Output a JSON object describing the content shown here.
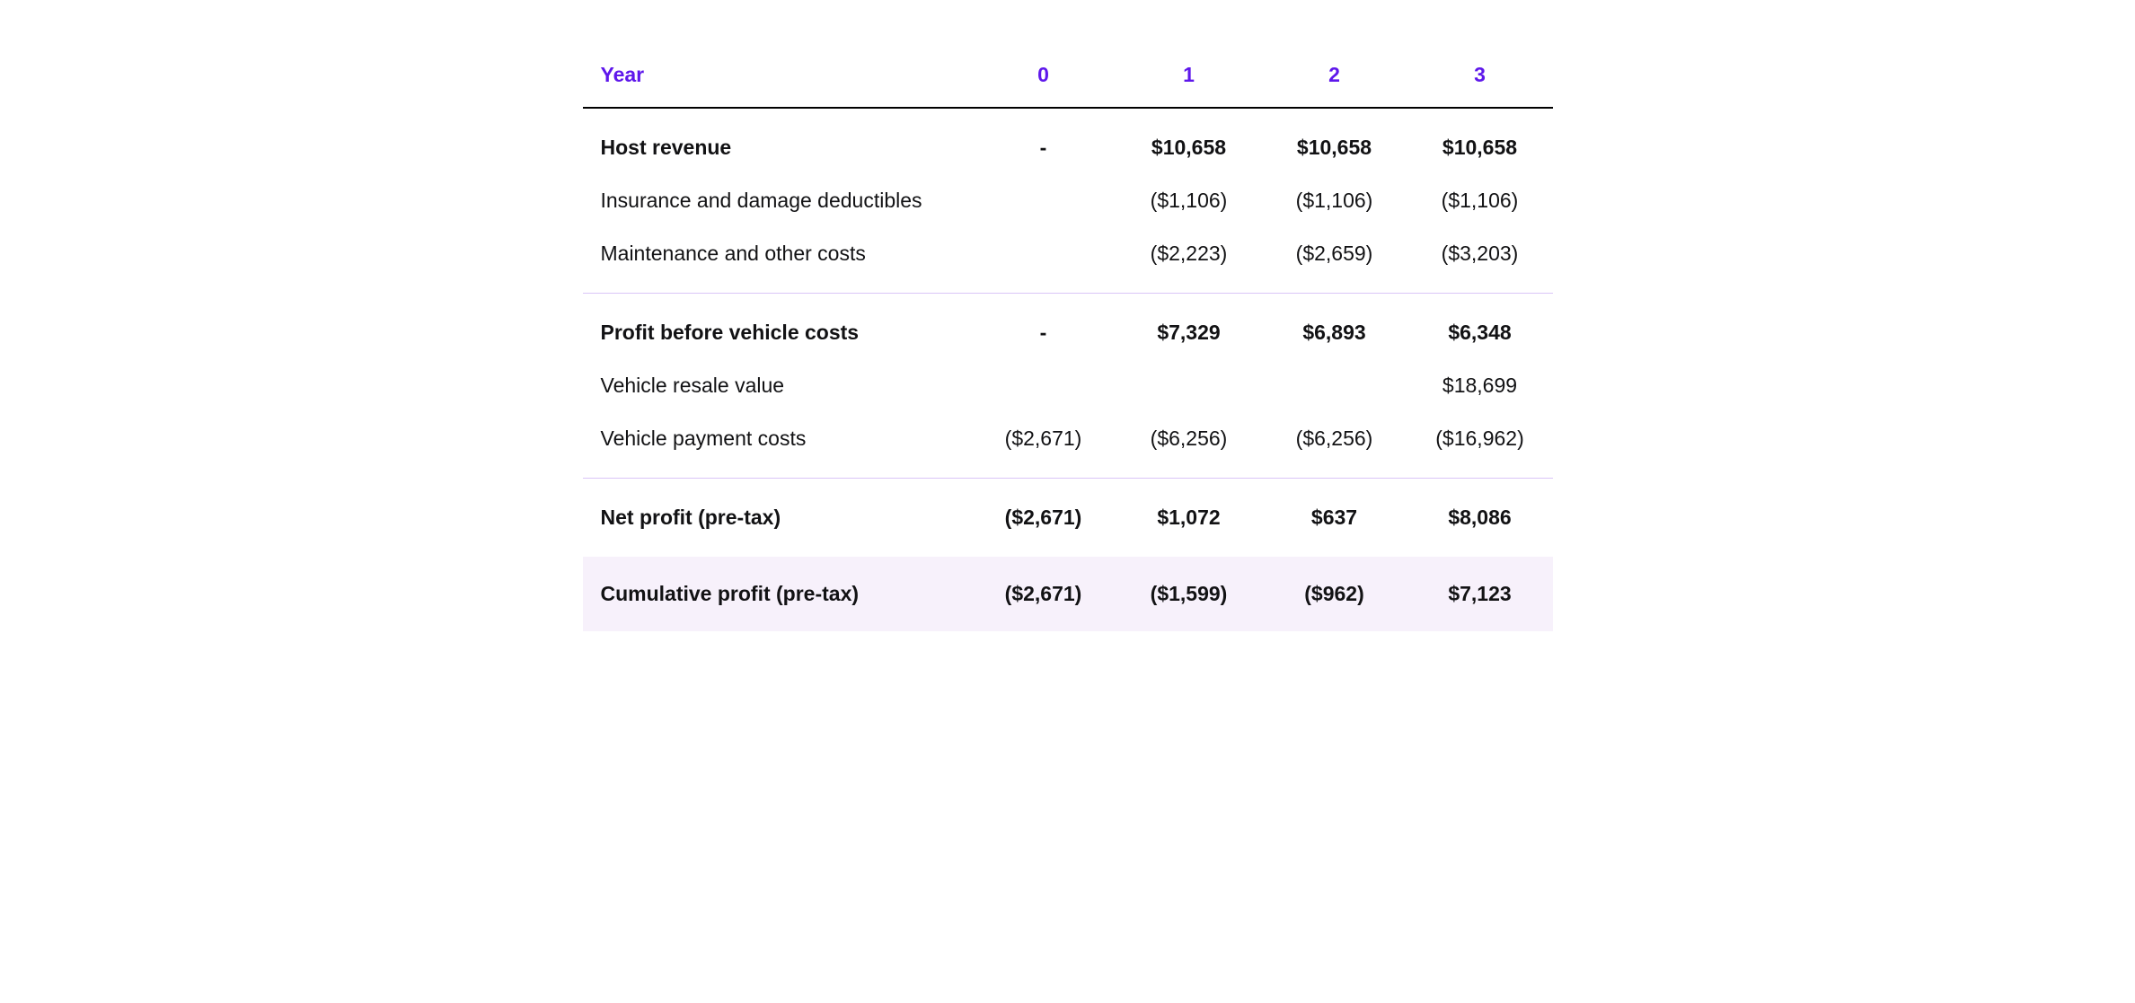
{
  "table": {
    "type": "table",
    "colors": {
      "header_text": "#5e17eb",
      "body_text": "#121214",
      "header_border": "#000000",
      "section_divider": "#d9c5f7",
      "highlight_background": "#f7f1fb",
      "page_background": "#ffffff"
    },
    "typography": {
      "header_fontsize": 23,
      "body_fontsize": 23,
      "header_fontweight": 700,
      "bold_row_fontweight": 700,
      "regular_row_fontweight": 400
    },
    "header": {
      "label": "Year",
      "years": [
        "0",
        "1",
        "2",
        "3"
      ]
    },
    "sections": [
      {
        "rows": [
          {
            "label": "Host revenue",
            "bold": true,
            "values": [
              "-",
              "$10,658",
              "$10,658",
              "$10,658"
            ]
          },
          {
            "label": "Insurance and damage deductibles",
            "bold": false,
            "values": [
              "",
              "($1,106)",
              "($1,106)",
              "($1,106)"
            ]
          },
          {
            "label": "Maintenance and other costs",
            "bold": false,
            "values": [
              "",
              "($2,223)",
              "($2,659)",
              "($3,203)"
            ]
          }
        ]
      },
      {
        "rows": [
          {
            "label": "Profit before vehicle costs",
            "bold": true,
            "values": [
              "-",
              "$7,329",
              "$6,893",
              "$6,348"
            ]
          },
          {
            "label": "Vehicle resale value",
            "bold": false,
            "values": [
              "",
              "",
              "",
              "$18,699"
            ]
          },
          {
            "label": "Vehicle payment costs",
            "bold": false,
            "values": [
              "($2,671)",
              "($6,256)",
              "($6,256)",
              "($16,962)"
            ]
          }
        ]
      },
      {
        "rows": [
          {
            "label": "Net profit (pre-tax)",
            "bold": true,
            "values": [
              "($2,671)",
              "$1,072",
              "$637",
              "$8,086"
            ]
          }
        ]
      },
      {
        "highlighted": true,
        "rows": [
          {
            "label": "Cumulative profit (pre-tax)",
            "bold": true,
            "values": [
              "($2,671)",
              "($1,599)",
              "($962)",
              "$7,123"
            ]
          }
        ]
      }
    ]
  }
}
